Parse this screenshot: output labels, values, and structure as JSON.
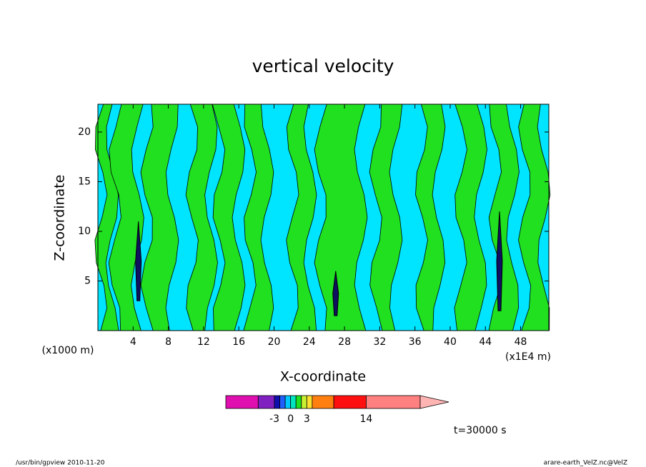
{
  "chart_data": {
    "type": "contour",
    "title": "vertical velocity",
    "xlabel": "X-coordinate",
    "ylabel": "Z-coordinate",
    "xunit_left": "(x1000 m)",
    "xunit_right": "(x1E4 m)",
    "xlim": [
      0,
      51.2
    ],
    "ylim": [
      0,
      22.8
    ],
    "xticks": [
      4,
      8,
      12,
      16,
      20,
      24,
      28,
      32,
      36,
      40,
      44,
      48
    ],
    "yticks": [
      5,
      10,
      15,
      20
    ],
    "background_color": "#00e5ff",
    "contour_color": "#20e020",
    "colorbar": {
      "lim": [
        -12,
        24
      ],
      "levels": [
        -12,
        -6,
        -3,
        -2,
        -1,
        0,
        1,
        2,
        3,
        4,
        8,
        14,
        24
      ],
      "colors": [
        "#e010b0",
        "#8020c0",
        "#1010b0",
        "#2060ff",
        "#00c8ff",
        "#00e5c0",
        "#20e020",
        "#c8f030",
        "#ffe030",
        "#ff8010",
        "#ff1010",
        "#ff8080"
      ],
      "extend_color": "#ffb4b4",
      "ticks": [
        -3,
        0,
        3,
        14
      ]
    },
    "annotation": "t=30000 s",
    "footer_left": "/usr/bin/gpview   2010-11-20",
    "footer_right": "arare-earth_VelZ.nc@VelZ"
  }
}
